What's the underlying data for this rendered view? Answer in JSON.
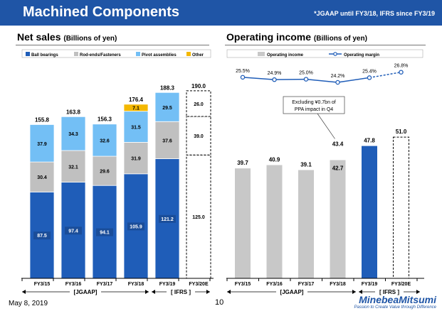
{
  "header": {
    "title": "Machined Components",
    "note": "*JGAAP until FY3/18, IFRS since FY3/19"
  },
  "footer": {
    "date": "May 8, 2019",
    "page": "10",
    "logo": "MinebeaMitsumi",
    "tagline": "Passion to Create Value through Difference"
  },
  "colors": {
    "ball_bearings": "#1f5db8",
    "rod_ends": "#c0c0c0",
    "pivot": "#73bff5",
    "other": "#f4b800",
    "op_income": "#c8c8c8",
    "op_income_ifrs": "#1f5db8",
    "margin_line": "#1f5db8"
  },
  "chart_data": [
    {
      "type": "bar",
      "stacked": true,
      "title": "Net sales",
      "unit": "(Billions of yen)",
      "categories": [
        "FY3/15",
        "FY3/16",
        "FY3/17",
        "FY3/18",
        "FY3/19",
        "FY3/20E"
      ],
      "series": [
        {
          "name": "Ball bearings",
          "values": [
            87.5,
            97.4,
            94.1,
            105.9,
            121.2,
            125.0
          ]
        },
        {
          "name": "Rod-ends/Fasteners",
          "values": [
            30.4,
            32.1,
            29.6,
            31.9,
            37.6,
            39.0
          ]
        },
        {
          "name": "Pivot assemblies",
          "values": [
            37.9,
            34.3,
            32.6,
            31.5,
            29.5,
            26.0
          ]
        },
        {
          "name": "Other",
          "values": [
            null,
            null,
            null,
            7.1,
            null,
            null
          ]
        }
      ],
      "totals": [
        "155.8",
        "163.8",
        "156.3",
        "176.4",
        "188.3",
        "190.0"
      ],
      "forecast_category": "FY3/20E",
      "ylim": [
        0,
        200
      ],
      "groups": [
        "[JGAAP]",
        "[ IFRS ]"
      ]
    },
    {
      "type": "bar",
      "title": "Operating income",
      "unit": "(Billions of yen)",
      "categories": [
        "FY3/15",
        "FY3/16",
        "FY3/17",
        "FY3/18",
        "FY3/19",
        "FY3/20E"
      ],
      "series": [
        {
          "name": "Operating income",
          "values": [
            39.7,
            40.9,
            39.1,
            42.7,
            47.8,
            51.0
          ]
        },
        {
          "name": "Operating margin",
          "type": "line",
          "values": [
            25.5,
            24.9,
            25.0,
            24.2,
            25.4,
            26.8
          ]
        }
      ],
      "value_labels": [
        "39.7",
        "40.9",
        "39.1",
        "42.7",
        "47.8",
        "51.0"
      ],
      "margin_labels": [
        "25.5%",
        "24.9%",
        "25.0%",
        "24.2%",
        "25.4%",
        "26.8%"
      ],
      "extra_label": "43.4",
      "annotation": "Excluding ¥0.7bn of PPA impact in Q4",
      "forecast_category": "FY3/20E",
      "ylim": [
        0,
        60
      ],
      "groups": [
        "[JGAAP]",
        "[ IFRS ]"
      ]
    }
  ]
}
